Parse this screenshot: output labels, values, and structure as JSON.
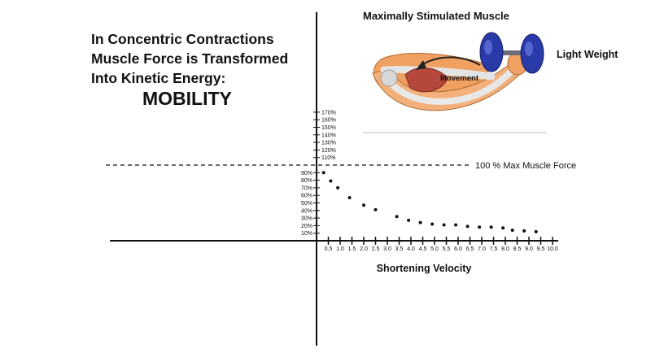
{
  "headline": {
    "line1": "In Concentric Contractions",
    "line2": "Muscle Force is Transformed",
    "line3": "Into Kinetic Energy:",
    "emphasis": "MOBILITY"
  },
  "illustration": {
    "title": "Maximally Stimulated Muscle",
    "arrow_label": "Movement",
    "weight_label": "Light Weight",
    "icons": [
      "flexed-arm-icon",
      "dumbbell-icon",
      "movement-arrow-icon"
    ]
  },
  "colors": {
    "skin": "#f0a060",
    "muscle": "#b5483a",
    "bone": "#e4e4e4",
    "dumbbell": "#2a3aa8",
    "ink": "#111111"
  },
  "chart_data": {
    "type": "scatter",
    "title": "",
    "xlabel": "Shortening Velocity",
    "ylabel": "",
    "x_ticks": [
      "0.5",
      "1.0",
      "1.5",
      "2.0",
      "2.5",
      "3.0",
      "3.5",
      "4.0",
      "4.5",
      "5.0",
      "5.5",
      "6.0",
      "6.5",
      "7.0",
      "7.5",
      "8.0",
      "8.5",
      "9.0",
      "9.5",
      "10.0"
    ],
    "y_ticks": [
      "10%",
      "20%",
      "30%",
      "40%",
      "50%",
      "60%",
      "70%",
      "80%",
      "90%",
      "110%",
      "120%",
      "130%",
      "140%",
      "150%",
      "160%",
      "170%"
    ],
    "xlim": [
      0,
      10
    ],
    "ylim": [
      0,
      170
    ],
    "reference_line": {
      "y": 100,
      "label": "100 % Max Muscle Force"
    },
    "series": [
      {
        "x": [
          0.3,
          0.6,
          0.9,
          1.4,
          2.0,
          2.5,
          3.4,
          3.9,
          4.4,
          4.9,
          5.4,
          5.9,
          6.4,
          6.9,
          7.4,
          7.9,
          8.3,
          8.8,
          9.3
        ],
        "values": [
          90,
          79,
          70,
          57,
          47,
          41,
          32,
          27,
          24,
          22,
          21,
          21,
          19,
          18,
          18,
          17,
          14,
          13,
          12
        ]
      }
    ],
    "grid": false
  }
}
